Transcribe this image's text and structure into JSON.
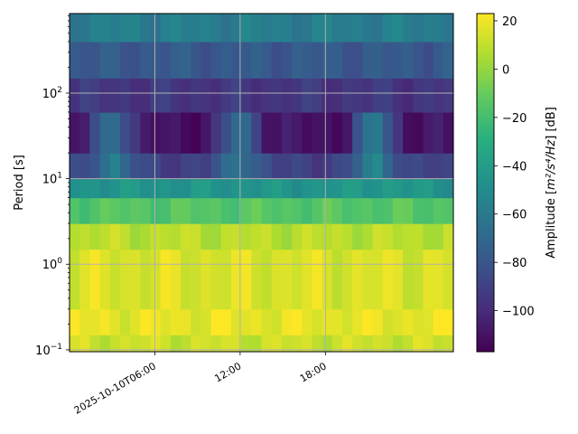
{
  "chart_data": {
    "type": "heatmap",
    "title": "",
    "xlabel": "",
    "ylabel": "Period [s]",
    "x_axis": {
      "type": "time",
      "range": [
        "2025-10-10T00:00",
        "2025-10-11T03:00"
      ],
      "ticks": [
        {
          "value": "2025-10-10T06:00",
          "label": "2025-10-10T06:00"
        },
        {
          "value": "2025-10-10T12:00",
          "label": "12:00"
        },
        {
          "value": "2025-10-10T18:00",
          "label": "18:00"
        }
      ],
      "tick_label_rotation": 30
    },
    "y_axis": {
      "scale": "log",
      "range": [
        0.095,
        850
      ],
      "ticks": [
        {
          "value": 0.1,
          "label": "10",
          "exp": "−1"
        },
        {
          "value": 1,
          "label": "10",
          "exp": "0"
        },
        {
          "value": 10,
          "label": "10",
          "exp": "1"
        },
        {
          "value": 100,
          "label": "10",
          "exp": "2"
        }
      ]
    },
    "grid": true,
    "colorbar": {
      "label_prefix": "Amplitude [",
      "label_unit_math": "m²/s⁴/Hz",
      "label_suffix": "] [dB]",
      "range": [
        -117,
        23
      ],
      "ticks": [
        20,
        0,
        -20,
        -40,
        -60,
        -80,
        -100
      ],
      "tick_labels": [
        "20",
        "0",
        "−20",
        "−40",
        "−60",
        "−80",
        "−100"
      ],
      "colormap": "viridis"
    },
    "heatmap": {
      "description": "Spectrogram: low-frequency (long period) band has low amplitude, short periods high amplitude",
      "time_columns": 38,
      "period_bands": [
        {
          "period_range": [
            0.095,
            0.15
          ],
          "amplitude_db": 12
        },
        {
          "period_range": [
            0.15,
            0.3
          ],
          "amplitude_db": 18
        },
        {
          "period_range": [
            0.3,
            1.5
          ],
          "amplitude_db": 15
        },
        {
          "period_range": [
            1.5,
            3
          ],
          "amplitude_db": 8
        },
        {
          "period_range": [
            3,
            6
          ],
          "amplitude_db": -15
        },
        {
          "period_range": [
            6,
            10
          ],
          "amplitude_db": -45
        },
        {
          "period_range": [
            10,
            20
          ],
          "amplitude_db": -90
        },
        {
          "period_range": [
            20,
            60
          ],
          "amplitude_db": -110
        },
        {
          "period_range": [
            60,
            150
          ],
          "amplitude_db": -95
        },
        {
          "period_range": [
            150,
            400
          ],
          "amplitude_db": -78
        },
        {
          "period_range": [
            400,
            850
          ],
          "amplitude_db": -58
        }
      ],
      "events": [
        {
          "time": "2025-10-10T03:00",
          "amplitude_db": -45
        },
        {
          "time": "2025-10-10T12:00",
          "amplitude_db": -50
        },
        {
          "time": "2025-10-10T21:30",
          "amplitude_db": -40
        }
      ]
    }
  }
}
